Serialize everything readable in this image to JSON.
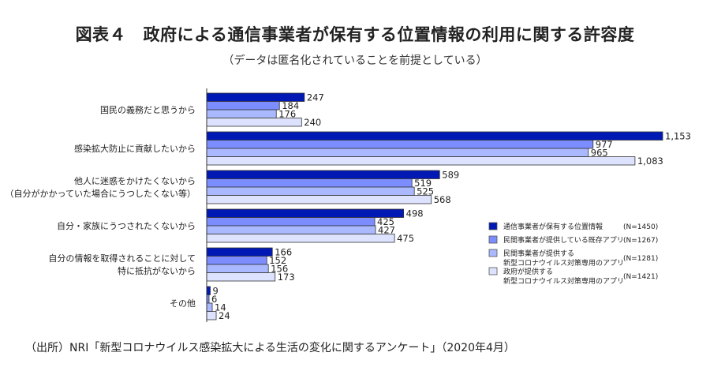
{
  "title": "図表４　政府による通信事業者が保有する位置情報の利用に関する許容度",
  "subtitle": "（データは匿名化されていることを前提としている）",
  "source": "（出所）NRI「新型コロナウイルス感染拡大による生活の変化に関するアンケート」（2020年4月）",
  "chart_data": {
    "type": "bar",
    "orientation": "horizontal",
    "title": "図表４　政府による通信事業者が保有する位置情報の利用に関する許容度",
    "subtitle": "（データは匿名化されていることを前提としている）",
    "xlabel": "",
    "ylabel": "",
    "xlim": [
      0,
      1250
    ],
    "grid": false,
    "legend_position": "right",
    "categories": [
      [
        "国民の義務だと思うから"
      ],
      [
        "感染拡大防止に貢献したいから"
      ],
      [
        "他人に迷惑をかけたくないから",
        "（自分がかかっていた場合にうつしたくない等）"
      ],
      [
        "自分・家族にうつされたくないから"
      ],
      [
        "自分の情報を取得されることに対して",
        "特に抵抗がないから"
      ],
      [
        "その他"
      ]
    ],
    "series": [
      {
        "name": [
          "通信事業者が保有する位置情報"
        ],
        "n": "(N=1450)",
        "color": "#0019b4",
        "values": [
          247,
          1153,
          589,
          498,
          166,
          9
        ],
        "labels": [
          "247",
          "1,153",
          "589",
          "498",
          "166",
          "9"
        ]
      },
      {
        "name": [
          "民間事業者が提供している既存アプリ"
        ],
        "n": "(N=1267)",
        "color": "#7b8dff",
        "values": [
          184,
          977,
          519,
          425,
          152,
          6
        ],
        "labels": [
          "184",
          "977",
          "519",
          "425",
          "152",
          "6"
        ]
      },
      {
        "name": [
          "民間事業者が提供する",
          "新型コロナウイルス対策専用のアプリ"
        ],
        "n": "(N=1281)",
        "color": "#aab9ff",
        "values": [
          176,
          965,
          525,
          427,
          156,
          14
        ],
        "labels": [
          "176",
          "965",
          "525",
          "427",
          "156",
          "14"
        ]
      },
      {
        "name": [
          "政府が提供する",
          "新型コロナウイルス対策専用のアプリ"
        ],
        "n": "(N=1421)",
        "color": "#dde3ff",
        "values": [
          240,
          1083,
          568,
          475,
          173,
          24
        ],
        "labels": [
          "240",
          "1,083",
          "568",
          "475",
          "173",
          "24"
        ]
      }
    ]
  }
}
